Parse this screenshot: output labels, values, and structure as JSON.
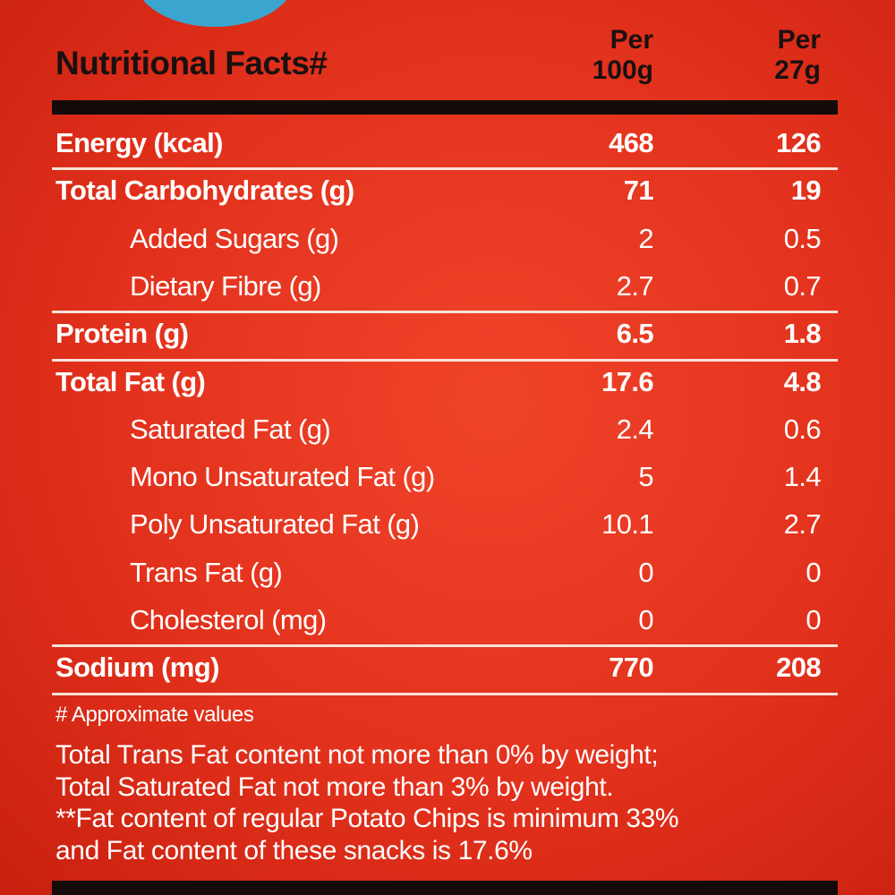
{
  "header": {
    "title": "Nutritional Facts#",
    "columns": [
      [
        "Per",
        "100g"
      ],
      [
        "Per",
        "27g"
      ]
    ]
  },
  "rows": [
    {
      "label": "Energy (kcal)",
      "per_100g": 468,
      "per_27g": 126
    },
    {
      "label": "Total Carbohydrates (g)",
      "per_100g": 71,
      "per_27g": 19,
      "sub": [
        {
          "label": "Added Sugars (g)",
          "per_100g": 2,
          "per_27g": 0.5
        },
        {
          "label": "Dietary Fibre (g)",
          "per_100g": 2.7,
          "per_27g": 0.7
        }
      ]
    },
    {
      "label": "Protein (g)",
      "per_100g": 6.5,
      "per_27g": 1.8
    },
    {
      "label": "Total Fat (g)",
      "per_100g": 17.6,
      "per_27g": 4.8,
      "sub": [
        {
          "label": "Saturated Fat (g)",
          "per_100g": 2.4,
          "per_27g": 0.6
        },
        {
          "label": "Mono Unsaturated Fat (g)",
          "per_100g": 5,
          "per_27g": 1.4
        },
        {
          "label": "Poly Unsaturated Fat (g)",
          "per_100g": 10.1,
          "per_27g": 2.7
        },
        {
          "label": "Trans Fat (g)",
          "per_100g": 0,
          "per_27g": 0
        },
        {
          "label": "Cholesterol (mg)",
          "per_100g": 0,
          "per_27g": 0
        }
      ]
    },
    {
      "label": "Sodium (mg)",
      "per_100g": 770,
      "per_27g": 208
    }
  ],
  "notes": [
    "# Approximate values",
    "Total Trans Fat content not more than 0% by weight;",
    "Total Saturated Fat not more than 3% by weight.",
    "**Fat content of regular Potato Chips is minimum 33%",
    "and Fat content of these snacks is 17.6%"
  ]
}
